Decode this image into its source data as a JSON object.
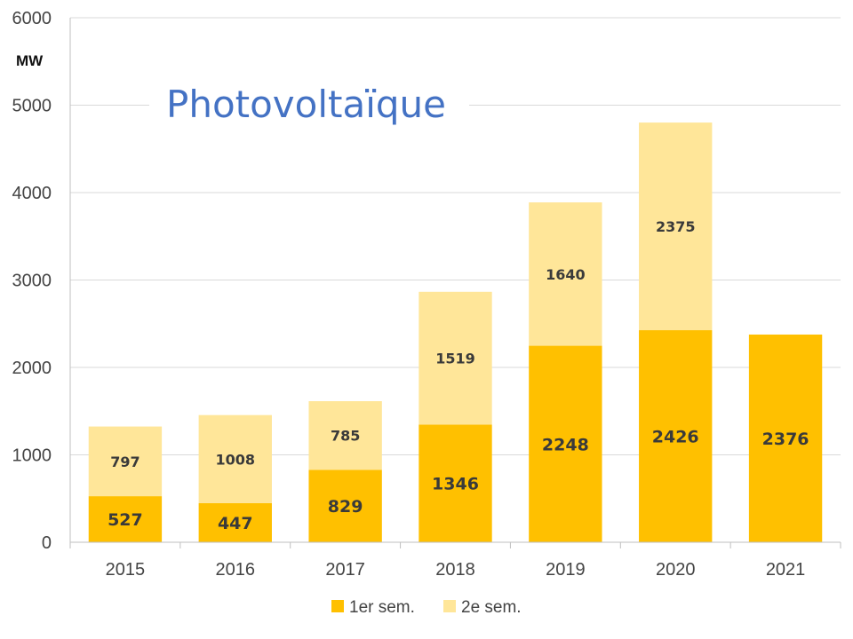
{
  "chart_data": {
    "type": "bar",
    "stacked": true,
    "title": "Photovoltaïque",
    "ylabel": "MW",
    "xlabel": "",
    "categories": [
      "2015",
      "2016",
      "2017",
      "2018",
      "2019",
      "2020",
      "2021"
    ],
    "series": [
      {
        "name": "1er sem.",
        "color": "#ffc000",
        "values": [
          527,
          447,
          829,
          1346,
          2248,
          2426,
          2376
        ]
      },
      {
        "name": "2e sem.",
        "color": "#ffe699",
        "values": [
          797,
          1008,
          785,
          1519,
          1640,
          2375,
          null
        ]
      }
    ],
    "ylim": [
      0,
      6000
    ],
    "yticks": [
      0,
      1000,
      2000,
      3000,
      4000,
      5000,
      6000
    ],
    "grid": true,
    "legend": "bottom-center"
  }
}
